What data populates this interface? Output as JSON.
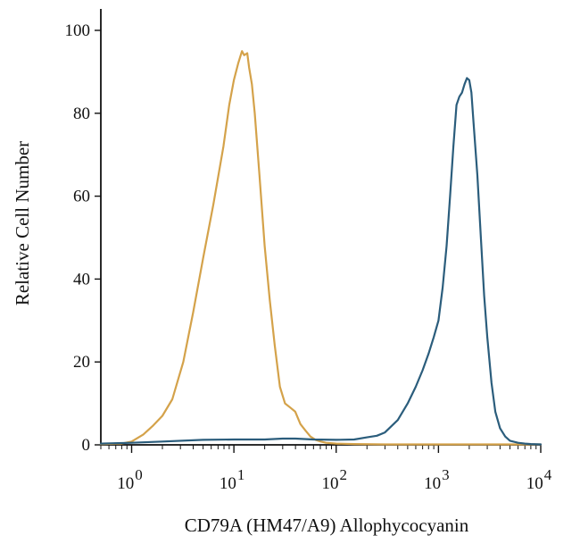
{
  "chart_data": {
    "type": "line",
    "title": "",
    "xlabel": "CD79A (HM47/A9) Allophycocyanin",
    "ylabel": "Relative Cell Number",
    "x_scale": "log",
    "xlim": [
      0.5,
      10000
    ],
    "ylim": [
      0,
      100
    ],
    "x_ticks": [
      {
        "value": 1,
        "base": "10",
        "exp": "0"
      },
      {
        "value": 10,
        "base": "10",
        "exp": "1"
      },
      {
        "value": 100,
        "base": "10",
        "exp": "2"
      },
      {
        "value": 1000,
        "base": "10",
        "exp": "3"
      },
      {
        "value": 10000,
        "base": "10",
        "exp": "4"
      }
    ],
    "y_ticks": [
      0,
      20,
      40,
      60,
      80,
      100
    ],
    "grid": false,
    "legend": "none",
    "series": [
      {
        "color": "#d4a24a",
        "x": [
          0.5,
          0.8,
          1.0,
          1.3,
          1.6,
          2.0,
          2.5,
          3.2,
          4.0,
          5.0,
          6.3,
          7.9,
          9.0,
          10,
          11,
          12,
          12.6,
          13.5,
          14.1,
          15.0,
          16,
          17.8,
          20,
          22.4,
          25.1,
          28.2,
          31.6,
          35.5,
          39.8,
          44.7,
          50,
          56,
          63,
          70.8,
          79.4,
          100,
          150,
          300,
          1000,
          3000,
          10000
        ],
        "y": [
          0.2,
          0.3,
          0.8,
          2.5,
          4.5,
          7,
          11,
          20,
          32,
          45,
          58,
          72,
          82,
          88,
          92,
          95,
          94,
          94.5,
          91,
          87,
          80,
          65,
          48,
          35,
          24,
          14,
          10,
          9,
          8,
          5,
          3.5,
          2,
          1.2,
          0.8,
          0.5,
          0.3,
          0.2,
          0.1,
          0.1,
          0.1,
          0.1
        ]
      },
      {
        "color": "#2b5d7c",
        "x": [
          0.5,
          1,
          2,
          5,
          10,
          20,
          30,
          40,
          60,
          100,
          150,
          200,
          250,
          300,
          400,
          500,
          600,
          700,
          800,
          900,
          1000,
          1100,
          1200,
          1300,
          1400,
          1500,
          1600,
          1700,
          1800,
          1900,
          2000,
          2100,
          2200,
          2400,
          2600,
          2800,
          3000,
          3300,
          3600,
          4000,
          4500,
          5000,
          6000,
          7000,
          8000,
          10000
        ],
        "y": [
          0.3,
          0.5,
          0.8,
          1.2,
          1.3,
          1.3,
          1.5,
          1.5,
          1.3,
          1.2,
          1.3,
          1.8,
          2.2,
          3,
          6,
          10,
          14,
          18,
          22,
          26,
          30,
          38,
          48,
          60,
          72,
          82,
          84,
          85,
          87,
          88.5,
          88,
          85,
          78,
          65,
          50,
          36,
          26,
          15,
          8,
          4,
          2,
          1,
          0.5,
          0.3,
          0.2,
          0.1
        ]
      }
    ]
  }
}
